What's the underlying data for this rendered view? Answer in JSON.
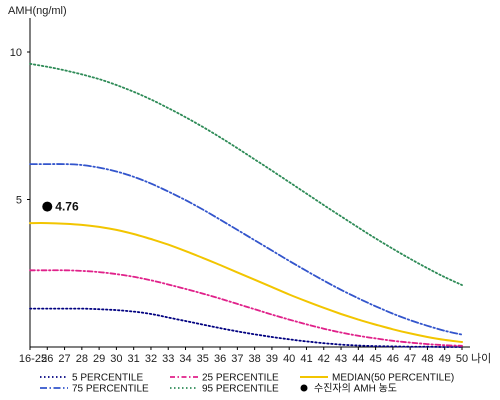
{
  "chart_data": {
    "type": "line",
    "title": "",
    "ylabel": "AMH(ng/ml)",
    "xlabel": "나이",
    "ylim": [
      0,
      11
    ],
    "y_ticks": [
      5,
      10
    ],
    "y_tick_labels": [
      "5",
      "10"
    ],
    "categories": [
      "16-25",
      "26",
      "27",
      "28",
      "29",
      "30",
      "31",
      "32",
      "33",
      "34",
      "35",
      "36",
      "37",
      "38",
      "39",
      "40",
      "41",
      "42",
      "43",
      "44",
      "45",
      "46",
      "47",
      "48",
      "49",
      "50"
    ],
    "grid": false,
    "legend_position": "bottom",
    "series": [
      {
        "name": "5 PERCENTILE",
        "color": "#000080",
        "dash": "dotted",
        "values": [
          1.3,
          1.3,
          1.3,
          1.3,
          1.28,
          1.25,
          1.2,
          1.12,
          1.0,
          0.88,
          0.76,
          0.64,
          0.53,
          0.43,
          0.34,
          0.26,
          0.19,
          0.13,
          0.08,
          0.05,
          0.03,
          0.02,
          0.01,
          0.01,
          0.0,
          0.0
        ]
      },
      {
        "name": "25 PERCENTILE",
        "color": "#e0218a",
        "dash": "dashdot",
        "values": [
          2.6,
          2.6,
          2.6,
          2.58,
          2.54,
          2.47,
          2.38,
          2.26,
          2.12,
          1.97,
          1.81,
          1.64,
          1.46,
          1.28,
          1.1,
          0.93,
          0.77,
          0.62,
          0.49,
          0.38,
          0.29,
          0.21,
          0.15,
          0.1,
          0.06,
          0.04
        ]
      },
      {
        "name": "MEDIAN(50 PERCENTILE)",
        "color": "#f2c500",
        "dash": "solid",
        "values": [
          4.2,
          4.2,
          4.18,
          4.14,
          4.07,
          3.97,
          3.83,
          3.66,
          3.47,
          3.25,
          3.02,
          2.78,
          2.53,
          2.28,
          2.03,
          1.78,
          1.55,
          1.33,
          1.12,
          0.93,
          0.76,
          0.6,
          0.46,
          0.34,
          0.24,
          0.17
        ]
      },
      {
        "name": "75 PERCENTILE",
        "color": "#3355cc",
        "dash": "longdashdot",
        "values": [
          6.2,
          6.2,
          6.2,
          6.17,
          6.08,
          5.95,
          5.77,
          5.54,
          5.27,
          4.98,
          4.66,
          4.32,
          3.97,
          3.62,
          3.27,
          2.92,
          2.58,
          2.25,
          1.94,
          1.65,
          1.38,
          1.13,
          0.91,
          0.72,
          0.55,
          0.42
        ]
      },
      {
        "name": "95 PERCENTILE",
        "color": "#2e8b57",
        "dash": "dotted",
        "values": [
          9.6,
          9.5,
          9.38,
          9.24,
          9.08,
          8.88,
          8.65,
          8.39,
          8.1,
          7.79,
          7.46,
          7.11,
          6.74,
          6.36,
          5.98,
          5.59,
          5.2,
          4.81,
          4.43,
          4.05,
          3.68,
          3.33,
          2.99,
          2.67,
          2.37,
          2.1
        ]
      }
    ],
    "points": [
      {
        "name": "수진자의 AMH 농도",
        "x": "26",
        "y": 4.76,
        "label": "4.76",
        "color": "#000000"
      }
    ],
    "legend": [
      {
        "label": "5 PERCENTILE",
        "series": 0
      },
      {
        "label": "25 PERCENTILE",
        "series": 1
      },
      {
        "label": "MEDIAN(50 PERCENTILE)",
        "series": 2
      },
      {
        "label": "75 PERCENTILE",
        "series": 3
      },
      {
        "label": "95 PERCENTILE",
        "series": 4
      },
      {
        "label": "수진자의 AMH 농도",
        "point": 0
      }
    ]
  }
}
